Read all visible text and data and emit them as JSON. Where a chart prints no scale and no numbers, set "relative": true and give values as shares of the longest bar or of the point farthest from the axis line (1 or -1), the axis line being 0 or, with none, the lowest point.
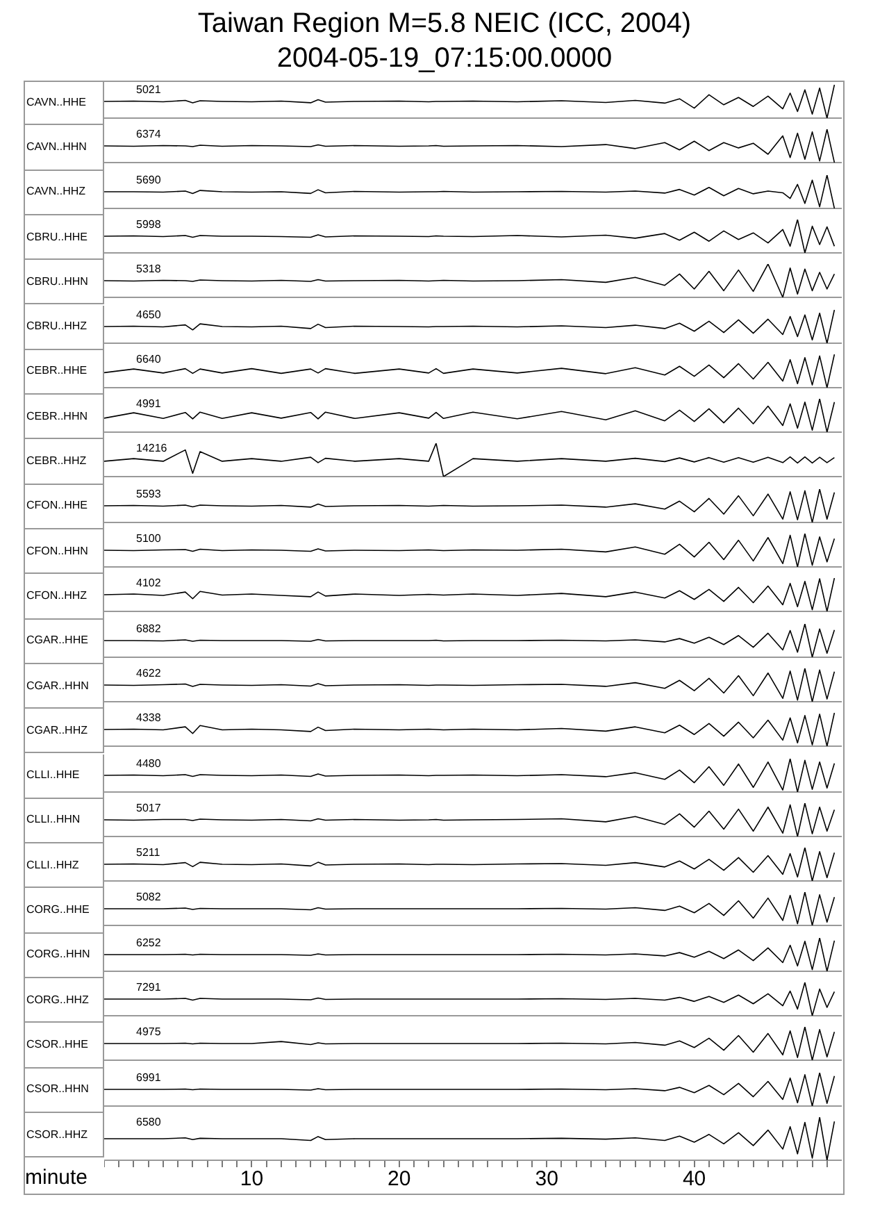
{
  "chart_data": [
    {
      "type": "line",
      "title": "Taiwan Region M=5.8 NEIC (ICC, 2004)",
      "subtitle": "2004-05-19_07:15:00.0000",
      "ylabel": "CAVN..HHE",
      "annotations": [
        "5021"
      ],
      "relative": true,
      "xlim": [
        0,
        50
      ],
      "tick_labels": false,
      "marker": "none",
      "x": [
        0,
        2,
        4,
        5.5,
        6,
        6.5,
        8,
        10,
        12,
        14,
        14.5,
        15,
        17,
        20,
        22,
        22.5,
        23,
        25,
        28,
        31,
        34,
        36,
        38,
        39,
        40,
        41,
        42,
        43,
        44,
        45,
        46,
        46.5,
        47,
        47.5,
        48,
        48.5,
        49,
        49.5
      ],
      "series": [
        {
          "color": "#000000",
          "values": [
            0.5,
            0.51,
            0.49,
            0.53,
            0.46,
            0.52,
            0.5,
            0.49,
            0.51,
            0.46,
            0.55,
            0.48,
            0.5,
            0.51,
            0.49,
            0.5,
            0.5,
            0.51,
            0.49,
            0.52,
            0.47,
            0.53,
            0.45,
            0.58,
            0.3,
            0.7,
            0.4,
            0.62,
            0.35,
            0.66,
            0.28,
            0.75,
            0.2,
            0.85,
            0.12,
            0.9,
            0,
            1
          ]
        }
      ]
    },
    {
      "type": "line",
      "ylabel": "CAVN..HHN",
      "annotations": [
        "6374"
      ],
      "relative": true,
      "xlim": [
        0,
        50
      ],
      "tick_labels": false,
      "marker": "none",
      "x": [
        0,
        2,
        4,
        5.5,
        6,
        6.5,
        8,
        10,
        12,
        14,
        14.5,
        15,
        17,
        20,
        22,
        22.5,
        23,
        25,
        28,
        31,
        34,
        36,
        38,
        39,
        40,
        41,
        42,
        43,
        44,
        45,
        46,
        46.5,
        47,
        47.5,
        48,
        48.5,
        49,
        49.5
      ],
      "series": [
        {
          "color": "#000000",
          "values": [
            0.5,
            0.49,
            0.51,
            0.5,
            0.48,
            0.52,
            0.49,
            0.51,
            0.5,
            0.48,
            0.53,
            0.49,
            0.51,
            0.49,
            0.5,
            0.51,
            0.49,
            0.5,
            0.51,
            0.48,
            0.54,
            0.42,
            0.6,
            0.38,
            0.64,
            0.36,
            0.6,
            0.44,
            0.58,
            0.25,
            0.8,
            0.15,
            0.88,
            0.1,
            0.92,
            0.05,
            1,
            0
          ]
        }
      ]
    },
    {
      "type": "line",
      "ylabel": "CAVN..HHZ",
      "annotations": [
        "5690"
      ],
      "relative": true,
      "xlim": [
        0,
        50
      ],
      "tick_labels": false,
      "marker": "none",
      "x": [
        0,
        2,
        4,
        5.5,
        6,
        6.5,
        8,
        10,
        12,
        14,
        14.5,
        15,
        17,
        20,
        22,
        22.5,
        23,
        25,
        28,
        31,
        34,
        36,
        38,
        39,
        40,
        41,
        42,
        43,
        44,
        45,
        46,
        46.5,
        47,
        47.5,
        48,
        48.5,
        49,
        49.5
      ],
      "series": [
        {
          "color": "#000000",
          "values": [
            0.5,
            0.5,
            0.49,
            0.52,
            0.45,
            0.54,
            0.5,
            0.49,
            0.5,
            0.45,
            0.56,
            0.47,
            0.51,
            0.49,
            0.5,
            0.5,
            0.51,
            0.49,
            0.5,
            0.51,
            0.49,
            0.52,
            0.46,
            0.57,
            0.4,
            0.63,
            0.38,
            0.6,
            0.44,
            0.52,
            0.47,
            0.3,
            0.72,
            0.15,
            0.85,
            0.05,
            1,
            0
          ]
        }
      ]
    },
    {
      "type": "line",
      "ylabel": "CBRU..HHE",
      "annotations": [
        "5998"
      ],
      "relative": true,
      "xlim": [
        0,
        50
      ],
      "tick_labels": false,
      "marker": "none",
      "x": [
        0,
        2,
        4,
        5.5,
        6,
        6.5,
        8,
        10,
        12,
        14,
        14.5,
        15,
        17,
        20,
        22,
        22.5,
        23,
        25,
        28,
        31,
        34,
        36,
        38,
        39,
        40,
        41,
        42,
        43,
        44,
        45,
        46,
        46.5,
        47,
        47.5,
        48,
        48.5,
        49,
        49.5
      ],
      "series": [
        {
          "color": "#000000",
          "values": [
            0.5,
            0.51,
            0.49,
            0.52,
            0.47,
            0.52,
            0.5,
            0.5,
            0.49,
            0.47,
            0.54,
            0.48,
            0.51,
            0.5,
            0.49,
            0.51,
            0.5,
            0.49,
            0.52,
            0.48,
            0.53,
            0.44,
            0.58,
            0.38,
            0.62,
            0.35,
            0.66,
            0.4,
            0.6,
            0.3,
            0.7,
            0.2,
            1,
            0,
            0.8,
            0.25,
            0.78,
            0.2
          ]
        }
      ]
    },
    {
      "type": "line",
      "ylabel": "CBRU..HHN",
      "annotations": [
        "5318"
      ],
      "relative": true,
      "xlim": [
        0,
        50
      ],
      "tick_labels": false,
      "marker": "none",
      "x": [
        0,
        2,
        4,
        5.5,
        6,
        6.5,
        8,
        10,
        12,
        14,
        14.5,
        15,
        17,
        20,
        22,
        22.5,
        23,
        25,
        28,
        31,
        34,
        36,
        38,
        39,
        40,
        41,
        42,
        43,
        44,
        45,
        46,
        46.5,
        47,
        47.5,
        48,
        48.5,
        49,
        49.5
      ],
      "series": [
        {
          "color": "#000000",
          "values": [
            0.5,
            0.49,
            0.51,
            0.5,
            0.48,
            0.52,
            0.5,
            0.49,
            0.51,
            0.48,
            0.53,
            0.49,
            0.5,
            0.51,
            0.49,
            0.5,
            0.51,
            0.49,
            0.5,
            0.53,
            0.45,
            0.6,
            0.36,
            0.7,
            0.25,
            0.78,
            0.2,
            0.82,
            0.18,
            1,
            0,
            0.88,
            0.1,
            0.85,
            0.2,
            0.75,
            0.25,
            0.7
          ]
        }
      ]
    },
    {
      "type": "line",
      "ylabel": "CBRU..HHZ",
      "annotations": [
        "4650"
      ],
      "relative": true,
      "xlim": [
        0,
        50
      ],
      "tick_labels": false,
      "marker": "none",
      "x": [
        0,
        2,
        4,
        5.5,
        6,
        6.5,
        8,
        10,
        12,
        14,
        14.5,
        15,
        17,
        20,
        22,
        22.5,
        23,
        25,
        28,
        31,
        34,
        36,
        38,
        39,
        40,
        41,
        42,
        43,
        44,
        45,
        46,
        46.5,
        47,
        47.5,
        48,
        48.5,
        49,
        49.5
      ],
      "series": [
        {
          "color": "#000000",
          "values": [
            0.5,
            0.51,
            0.49,
            0.55,
            0.4,
            0.58,
            0.5,
            0.49,
            0.51,
            0.44,
            0.57,
            0.47,
            0.51,
            0.5,
            0.49,
            0.5,
            0.5,
            0.51,
            0.49,
            0.52,
            0.47,
            0.54,
            0.44,
            0.6,
            0.36,
            0.66,
            0.32,
            0.7,
            0.3,
            0.72,
            0.26,
            0.8,
            0.2,
            0.85,
            0.1,
            0.9,
            0,
            1
          ]
        }
      ]
    },
    {
      "type": "line",
      "ylabel": "CEBR..HHE",
      "annotations": [
        "6640"
      ],
      "relative": true,
      "xlim": [
        0,
        50
      ],
      "tick_labels": false,
      "marker": "none",
      "x": [
        0,
        2,
        4,
        5.5,
        6,
        6.5,
        8,
        10,
        12,
        14,
        14.5,
        15,
        17,
        20,
        22,
        22.5,
        23,
        25,
        28,
        31,
        34,
        36,
        38,
        39,
        40,
        41,
        42,
        43,
        44,
        45,
        46,
        46.5,
        47,
        47.5,
        48,
        48.5,
        49,
        49.5
      ],
      "series": [
        {
          "color": "#000000",
          "values": [
            0.45,
            0.56,
            0.44,
            0.57,
            0.43,
            0.56,
            0.44,
            0.57,
            0.43,
            0.56,
            0.44,
            0.57,
            0.43,
            0.56,
            0.44,
            0.57,
            0.43,
            0.56,
            0.44,
            0.58,
            0.42,
            0.6,
            0.38,
            0.64,
            0.34,
            0.68,
            0.3,
            0.72,
            0.26,
            0.76,
            0.2,
            0.84,
            0.12,
            0.9,
            0.08,
            0.95,
            0,
            1
          ]
        }
      ]
    },
    {
      "type": "line",
      "ylabel": "CEBR..HHN",
      "annotations": [
        "4991"
      ],
      "relative": true,
      "xlim": [
        0,
        50
      ],
      "tick_labels": false,
      "marker": "none",
      "x": [
        0,
        2,
        4,
        5.5,
        6,
        6.5,
        8,
        10,
        12,
        14,
        14.5,
        15,
        17,
        20,
        22,
        22.5,
        23,
        25,
        28,
        31,
        34,
        36,
        38,
        39,
        40,
        41,
        42,
        43,
        44,
        45,
        46,
        46.5,
        47,
        47.5,
        48,
        48.5,
        49,
        49.5
      ],
      "series": [
        {
          "color": "#000000",
          "values": [
            0.42,
            0.58,
            0.41,
            0.59,
            0.4,
            0.6,
            0.41,
            0.58,
            0.42,
            0.59,
            0.4,
            0.6,
            0.41,
            0.58,
            0.42,
            0.59,
            0.41,
            0.6,
            0.4,
            0.62,
            0.37,
            0.64,
            0.34,
            0.66,
            0.32,
            0.7,
            0.28,
            0.72,
            0.25,
            0.78,
            0.2,
            0.85,
            0.12,
            0.9,
            0.06,
            1,
            0,
            0.9
          ]
        }
      ]
    },
    {
      "type": "line",
      "ylabel": "CEBR..HHZ",
      "annotations": [
        "14216"
      ],
      "relative": true,
      "xlim": [
        0,
        50
      ],
      "tick_labels": false,
      "marker": "none",
      "x": [
        0,
        2,
        4,
        5.5,
        6,
        6.5,
        8,
        10,
        12,
        14,
        14.5,
        15,
        17,
        20,
        22,
        22.5,
        23,
        25,
        28,
        31,
        34,
        36,
        38,
        39,
        40,
        41,
        42,
        43,
        44,
        45,
        46,
        46.5,
        47,
        47.5,
        48,
        48.5,
        49,
        49.5
      ],
      "series": [
        {
          "color": "#000000",
          "values": [
            0.46,
            0.54,
            0.46,
            0.8,
            0.1,
            0.75,
            0.46,
            0.54,
            0.46,
            0.58,
            0.42,
            0.55,
            0.46,
            0.54,
            0.46,
            1,
            0,
            0.54,
            0.46,
            0.54,
            0.46,
            0.55,
            0.45,
            0.56,
            0.44,
            0.57,
            0.43,
            0.57,
            0.43,
            0.58,
            0.42,
            0.59,
            0.41,
            0.59,
            0.41,
            0.58,
            0.42,
            0.57
          ]
        }
      ]
    },
    {
      "type": "line",
      "ylabel": "CFON..HHE",
      "annotations": [
        "5593"
      ],
      "relative": true,
      "xlim": [
        0,
        50
      ],
      "tick_labels": false,
      "marker": "none",
      "x": [
        0,
        2,
        4,
        5.5,
        6,
        6.5,
        8,
        10,
        12,
        14,
        14.5,
        15,
        17,
        20,
        22,
        22.5,
        23,
        25,
        28,
        31,
        34,
        36,
        38,
        39,
        40,
        41,
        42,
        43,
        44,
        45,
        46,
        46.5,
        47,
        47.5,
        48,
        48.5,
        49,
        49.5
      ],
      "series": [
        {
          "color": "#000000",
          "values": [
            0.5,
            0.51,
            0.49,
            0.52,
            0.47,
            0.52,
            0.5,
            0.49,
            0.51,
            0.46,
            0.55,
            0.48,
            0.5,
            0.51,
            0.49,
            0.5,
            0.51,
            0.49,
            0.5,
            0.52,
            0.46,
            0.56,
            0.4,
            0.64,
            0.32,
            0.72,
            0.25,
            0.8,
            0.2,
            0.85,
            0.1,
            0.92,
            0.08,
            0.95,
            0,
            1,
            0.1,
            0.9
          ]
        }
      ]
    },
    {
      "type": "line",
      "ylabel": "CFON..HHN",
      "annotations": [
        "5100"
      ],
      "relative": true,
      "xlim": [
        0,
        50
      ],
      "tick_labels": false,
      "marker": "none",
      "x": [
        0,
        2,
        4,
        5.5,
        6,
        6.5,
        8,
        10,
        12,
        14,
        14.5,
        15,
        17,
        20,
        22,
        22.5,
        23,
        25,
        28,
        31,
        34,
        36,
        38,
        39,
        40,
        41,
        42,
        43,
        44,
        45,
        46,
        46.5,
        47,
        47.5,
        48,
        48.5,
        49,
        49.5
      ],
      "series": [
        {
          "color": "#000000",
          "values": [
            0.5,
            0.49,
            0.51,
            0.52,
            0.47,
            0.53,
            0.49,
            0.51,
            0.5,
            0.47,
            0.54,
            0.48,
            0.5,
            0.49,
            0.51,
            0.5,
            0.49,
            0.51,
            0.5,
            0.53,
            0.45,
            0.6,
            0.38,
            0.68,
            0.3,
            0.74,
            0.22,
            0.8,
            0.18,
            0.88,
            0.1,
            0.95,
            0,
            1,
            0.05,
            0.9,
            0.15,
            0.85
          ]
        }
      ]
    },
    {
      "type": "line",
      "ylabel": "CFON..HHZ",
      "annotations": [
        "4102"
      ],
      "relative": true,
      "xlim": [
        0,
        50
      ],
      "tick_labels": false,
      "marker": "none",
      "x": [
        0,
        2,
        4,
        5.5,
        6,
        6.5,
        8,
        10,
        12,
        14,
        14.5,
        15,
        17,
        20,
        22,
        22.5,
        23,
        25,
        28,
        31,
        34,
        36,
        38,
        39,
        40,
        41,
        42,
        43,
        44,
        45,
        46,
        46.5,
        47,
        47.5,
        48,
        48.5,
        49,
        49.5
      ],
      "series": [
        {
          "color": "#000000",
          "values": [
            0.5,
            0.52,
            0.48,
            0.58,
            0.38,
            0.6,
            0.49,
            0.52,
            0.48,
            0.44,
            0.58,
            0.46,
            0.52,
            0.48,
            0.51,
            0.5,
            0.49,
            0.52,
            0.48,
            0.54,
            0.44,
            0.58,
            0.4,
            0.62,
            0.36,
            0.66,
            0.3,
            0.72,
            0.26,
            0.76,
            0.2,
            0.84,
            0.14,
            0.9,
            0.05,
            0.98,
            0,
            1
          ]
        }
      ]
    },
    {
      "type": "line",
      "ylabel": "CGAR..HHE",
      "annotations": [
        "6882"
      ],
      "relative": true,
      "xlim": [
        0,
        50
      ],
      "tick_labels": false,
      "marker": "none",
      "x": [
        0,
        2,
        4,
        5.5,
        6,
        6.5,
        8,
        10,
        12,
        14,
        14.5,
        15,
        17,
        20,
        22,
        22.5,
        23,
        25,
        28,
        31,
        34,
        36,
        38,
        39,
        40,
        41,
        42,
        43,
        44,
        45,
        46,
        46.5,
        47,
        47.5,
        48,
        48.5,
        49,
        49.5
      ],
      "series": [
        {
          "color": "#000000",
          "values": [
            0.5,
            0.5,
            0.49,
            0.52,
            0.48,
            0.51,
            0.5,
            0.5,
            0.5,
            0.48,
            0.53,
            0.49,
            0.5,
            0.5,
            0.5,
            0.51,
            0.49,
            0.5,
            0.5,
            0.51,
            0.49,
            0.52,
            0.46,
            0.56,
            0.42,
            0.6,
            0.38,
            0.65,
            0.3,
            0.72,
            0.22,
            0.8,
            0.15,
            1,
            0,
            0.85,
            0.12,
            0.82
          ]
        }
      ]
    },
    {
      "type": "line",
      "ylabel": "CGAR..HHN",
      "annotations": [
        "4622"
      ],
      "relative": true,
      "xlim": [
        0,
        50
      ],
      "tick_labels": false,
      "marker": "none",
      "x": [
        0,
        2,
        4,
        5.5,
        6,
        6.5,
        8,
        10,
        12,
        14,
        14.5,
        15,
        17,
        20,
        22,
        22.5,
        23,
        25,
        28,
        31,
        34,
        36,
        38,
        39,
        40,
        41,
        42,
        43,
        44,
        45,
        46,
        46.5,
        47,
        47.5,
        48,
        48.5,
        49,
        49.5
      ],
      "series": [
        {
          "color": "#000000",
          "values": [
            0.5,
            0.49,
            0.51,
            0.53,
            0.46,
            0.52,
            0.5,
            0.49,
            0.51,
            0.47,
            0.54,
            0.48,
            0.5,
            0.51,
            0.49,
            0.5,
            0.5,
            0.49,
            0.51,
            0.52,
            0.46,
            0.57,
            0.4,
            0.64,
            0.33,
            0.7,
            0.26,
            0.78,
            0.18,
            0.86,
            0.1,
            0.92,
            0.05,
            1,
            0,
            0.95,
            0.08,
            0.9
          ]
        }
      ]
    },
    {
      "type": "line",
      "ylabel": "CGAR..HHZ",
      "annotations": [
        "4338"
      ],
      "relative": true,
      "xlim": [
        0,
        50
      ],
      "tick_labels": false,
      "marker": "none",
      "x": [
        0,
        2,
        4,
        5.5,
        6,
        6.5,
        8,
        10,
        12,
        14,
        14.5,
        15,
        17,
        20,
        22,
        22.5,
        23,
        25,
        28,
        31,
        34,
        36,
        38,
        39,
        40,
        41,
        42,
        43,
        44,
        45,
        46,
        46.5,
        47,
        47.5,
        48,
        48.5,
        49,
        49.5
      ],
      "series": [
        {
          "color": "#000000",
          "values": [
            0.5,
            0.51,
            0.49,
            0.58,
            0.38,
            0.62,
            0.49,
            0.51,
            0.49,
            0.44,
            0.57,
            0.47,
            0.51,
            0.49,
            0.51,
            0.5,
            0.49,
            0.51,
            0.49,
            0.53,
            0.45,
            0.58,
            0.4,
            0.63,
            0.35,
            0.68,
            0.3,
            0.72,
            0.25,
            0.78,
            0.18,
            0.85,
            0.1,
            0.92,
            0.04,
            0.96,
            0,
            1
          ]
        }
      ]
    },
    {
      "type": "line",
      "ylabel": "CLLI..HHE",
      "annotations": [
        "4480"
      ],
      "relative": true,
      "xlim": [
        0,
        50
      ],
      "tick_labels": false,
      "marker": "none",
      "x": [
        0,
        2,
        4,
        5.5,
        6,
        6.5,
        8,
        10,
        12,
        14,
        14.5,
        15,
        17,
        20,
        22,
        22.5,
        23,
        25,
        28,
        31,
        34,
        36,
        38,
        39,
        40,
        41,
        42,
        43,
        44,
        45,
        46,
        46.5,
        47,
        47.5,
        48,
        48.5,
        49,
        49.5
      ],
      "series": [
        {
          "color": "#000000",
          "values": [
            0.5,
            0.51,
            0.49,
            0.52,
            0.47,
            0.52,
            0.5,
            0.49,
            0.51,
            0.47,
            0.54,
            0.48,
            0.5,
            0.51,
            0.49,
            0.5,
            0.5,
            0.51,
            0.49,
            0.52,
            0.46,
            0.58,
            0.38,
            0.66,
            0.28,
            0.76,
            0.2,
            0.84,
            0.14,
            0.9,
            0.06,
            1,
            0,
            0.95,
            0.08,
            0.9,
            0.12,
            0.86
          ]
        }
      ]
    },
    {
      "type": "line",
      "ylabel": "CLLI..HHN",
      "annotations": [
        "5017"
      ],
      "relative": true,
      "xlim": [
        0,
        50
      ],
      "tick_labels": false,
      "marker": "none",
      "x": [
        0,
        2,
        4,
        5.5,
        6,
        6.5,
        8,
        10,
        12,
        14,
        14.5,
        15,
        17,
        20,
        22,
        22.5,
        23,
        25,
        28,
        31,
        34,
        36,
        38,
        39,
        40,
        41,
        42,
        43,
        44,
        45,
        46,
        46.5,
        47,
        47.5,
        48,
        48.5,
        49,
        49.5
      ],
      "series": [
        {
          "color": "#000000",
          "values": [
            0.5,
            0.49,
            0.51,
            0.51,
            0.48,
            0.52,
            0.5,
            0.49,
            0.51,
            0.47,
            0.53,
            0.49,
            0.51,
            0.49,
            0.5,
            0.51,
            0.49,
            0.5,
            0.51,
            0.53,
            0.44,
            0.6,
            0.36,
            0.68,
            0.28,
            0.76,
            0.22,
            0.82,
            0.16,
            0.88,
            0.1,
            0.95,
            0,
            1,
            0.08,
            0.88,
            0.16,
            0.8
          ]
        }
      ]
    },
    {
      "type": "line",
      "ylabel": "CLLI..HHZ",
      "annotations": [
        "5211"
      ],
      "relative": true,
      "xlim": [
        0,
        50
      ],
      "tick_labels": false,
      "marker": "none",
      "x": [
        0,
        2,
        4,
        5.5,
        6,
        6.5,
        8,
        10,
        12,
        14,
        14.5,
        15,
        17,
        20,
        22,
        22.5,
        23,
        25,
        28,
        31,
        34,
        36,
        38,
        39,
        40,
        41,
        42,
        43,
        44,
        45,
        46,
        46.5,
        47,
        47.5,
        48,
        48.5,
        49,
        49.5
      ],
      "series": [
        {
          "color": "#000000",
          "values": [
            0.5,
            0.51,
            0.49,
            0.55,
            0.43,
            0.56,
            0.5,
            0.49,
            0.51,
            0.45,
            0.56,
            0.48,
            0.5,
            0.51,
            0.49,
            0.5,
            0.5,
            0.49,
            0.51,
            0.52,
            0.47,
            0.55,
            0.42,
            0.6,
            0.36,
            0.65,
            0.32,
            0.7,
            0.26,
            0.76,
            0.2,
            0.82,
            0.12,
            1,
            0,
            0.88,
            0.1,
            0.85
          ]
        }
      ]
    },
    {
      "type": "line",
      "ylabel": "CORG..HHE",
      "annotations": [
        "5082"
      ],
      "relative": true,
      "xlim": [
        0,
        50
      ],
      "tick_labels": false,
      "marker": "none",
      "x": [
        0,
        2,
        4,
        5.5,
        6,
        6.5,
        8,
        10,
        12,
        14,
        14.5,
        15,
        17,
        20,
        22,
        22.5,
        23,
        25,
        28,
        31,
        34,
        36,
        38,
        39,
        40,
        41,
        42,
        43,
        44,
        45,
        46,
        46.5,
        47,
        47.5,
        48,
        48.5,
        49,
        49.5
      ],
      "series": [
        {
          "color": "#000000",
          "values": [
            0.5,
            0.5,
            0.5,
            0.52,
            0.48,
            0.51,
            0.5,
            0.5,
            0.5,
            0.47,
            0.53,
            0.49,
            0.5,
            0.5,
            0.5,
            0.5,
            0.5,
            0.5,
            0.5,
            0.51,
            0.49,
            0.53,
            0.45,
            0.58,
            0.38,
            0.66,
            0.3,
            0.74,
            0.22,
            0.82,
            0.15,
            0.9,
            0.05,
            1,
            0,
            0.92,
            0.1,
            0.85
          ]
        }
      ]
    },
    {
      "type": "line",
      "ylabel": "CORG..HHN",
      "annotations": [
        "6252"
      ],
      "relative": true,
      "xlim": [
        0,
        50
      ],
      "tick_labels": false,
      "marker": "none",
      "x": [
        0,
        2,
        4,
        5.5,
        6,
        6.5,
        8,
        10,
        12,
        14,
        14.5,
        15,
        17,
        20,
        22,
        22.5,
        23,
        25,
        28,
        31,
        34,
        36,
        38,
        39,
        40,
        41,
        42,
        43,
        44,
        45,
        46,
        46.5,
        47,
        47.5,
        48,
        48.5,
        49,
        49.5
      ],
      "series": [
        {
          "color": "#000000",
          "values": [
            0.5,
            0.5,
            0.5,
            0.51,
            0.49,
            0.51,
            0.5,
            0.5,
            0.5,
            0.48,
            0.52,
            0.49,
            0.5,
            0.5,
            0.5,
            0.5,
            0.5,
            0.5,
            0.5,
            0.51,
            0.49,
            0.52,
            0.46,
            0.56,
            0.42,
            0.6,
            0.38,
            0.64,
            0.32,
            0.7,
            0.26,
            0.78,
            0.16,
            0.9,
            0.05,
            1,
            0,
            0.92
          ]
        }
      ]
    },
    {
      "type": "line",
      "ylabel": "CORG..HHZ",
      "annotations": [
        "7291"
      ],
      "relative": true,
      "xlim": [
        0,
        50
      ],
      "tick_labels": false,
      "marker": "none",
      "x": [
        0,
        2,
        4,
        5.5,
        6,
        6.5,
        8,
        10,
        12,
        14,
        14.5,
        15,
        17,
        20,
        22,
        22.5,
        23,
        25,
        28,
        31,
        34,
        36,
        38,
        39,
        40,
        41,
        42,
        43,
        44,
        45,
        46,
        46.5,
        47,
        47.5,
        48,
        48.5,
        49,
        49.5
      ],
      "series": [
        {
          "color": "#000000",
          "values": [
            0.5,
            0.5,
            0.5,
            0.52,
            0.47,
            0.52,
            0.5,
            0.5,
            0.5,
            0.48,
            0.53,
            0.49,
            0.5,
            0.5,
            0.5,
            0.5,
            0.5,
            0.5,
            0.5,
            0.51,
            0.49,
            0.52,
            0.47,
            0.55,
            0.43,
            0.58,
            0.4,
            0.62,
            0.36,
            0.66,
            0.3,
            0.74,
            0.2,
            1,
            0,
            0.8,
            0.25,
            0.72
          ]
        }
      ]
    },
    {
      "type": "line",
      "ylabel": "CSOR..HHE",
      "annotations": [
        "4975"
      ],
      "relative": true,
      "xlim": [
        0,
        50
      ],
      "tick_labels": false,
      "marker": "none",
      "x": [
        0,
        2,
        4,
        5.5,
        6,
        6.5,
        8,
        10,
        12,
        14,
        14.5,
        15,
        17,
        20,
        22,
        22.5,
        23,
        25,
        28,
        31,
        34,
        36,
        38,
        39,
        40,
        41,
        42,
        43,
        44,
        45,
        46,
        46.5,
        47,
        47.5,
        48,
        48.5,
        49,
        49.5
      ],
      "series": [
        {
          "color": "#000000",
          "values": [
            0.5,
            0.5,
            0.5,
            0.51,
            0.49,
            0.51,
            0.5,
            0.5,
            0.56,
            0.47,
            0.52,
            0.49,
            0.5,
            0.5,
            0.5,
            0.5,
            0.5,
            0.5,
            0.5,
            0.51,
            0.49,
            0.53,
            0.45,
            0.58,
            0.38,
            0.66,
            0.3,
            0.74,
            0.24,
            0.8,
            0.16,
            0.88,
            0.08,
            1,
            0,
            0.92,
            0.1,
            0.85
          ]
        }
      ]
    },
    {
      "type": "line",
      "ylabel": "CSOR..HHN",
      "annotations": [
        "6991"
      ],
      "relative": true,
      "xlim": [
        0,
        50
      ],
      "tick_labels": false,
      "marker": "none",
      "x": [
        0,
        2,
        4,
        5.5,
        6,
        6.5,
        8,
        10,
        12,
        14,
        14.5,
        15,
        17,
        20,
        22,
        22.5,
        23,
        25,
        28,
        31,
        34,
        36,
        38,
        39,
        40,
        41,
        42,
        43,
        44,
        45,
        46,
        46.5,
        47,
        47.5,
        48,
        48.5,
        49,
        49.5
      ],
      "series": [
        {
          "color": "#000000",
          "values": [
            0.5,
            0.5,
            0.5,
            0.51,
            0.49,
            0.51,
            0.5,
            0.5,
            0.5,
            0.48,
            0.52,
            0.49,
            0.5,
            0.5,
            0.5,
            0.5,
            0.5,
            0.5,
            0.5,
            0.51,
            0.49,
            0.52,
            0.46,
            0.56,
            0.4,
            0.62,
            0.34,
            0.68,
            0.28,
            0.74,
            0.2,
            0.84,
            0.1,
            0.94,
            0,
            1,
            0.08,
            0.9
          ]
        }
      ]
    },
    {
      "type": "line",
      "ylabel": "CSOR..HHZ",
      "xlabel": "minute",
      "annotations": [
        "6580"
      ],
      "relative": true,
      "xlim": [
        0,
        50
      ],
      "tick_labels": "x",
      "marker": "none",
      "xticks": [
        {
          "value": 0,
          "label": null
        },
        {
          "value": 1,
          "label": null
        },
        {
          "value": 2,
          "label": null
        },
        {
          "value": 3,
          "label": null
        },
        {
          "value": 4,
          "label": null
        },
        {
          "value": 5,
          "label": null
        },
        {
          "value": 6,
          "label": null
        },
        {
          "value": 7,
          "label": null
        },
        {
          "value": 8,
          "label": null
        },
        {
          "value": 9,
          "label": null
        },
        10,
        {
          "value": 11,
          "label": null
        },
        {
          "value": 12,
          "label": null
        },
        {
          "value": 13,
          "label": null
        },
        {
          "value": 14,
          "label": null
        },
        {
          "value": 15,
          "label": null
        },
        {
          "value": 16,
          "label": null
        },
        {
          "value": 17,
          "label": null
        },
        {
          "value": 18,
          "label": null
        },
        {
          "value": 19,
          "label": null
        },
        20,
        {
          "value": 21,
          "label": null
        },
        {
          "value": 22,
          "label": null
        },
        {
          "value": 23,
          "label": null
        },
        {
          "value": 24,
          "label": null
        },
        {
          "value": 25,
          "label": null
        },
        {
          "value": 26,
          "label": null
        },
        {
          "value": 27,
          "label": null
        },
        {
          "value": 28,
          "label": null
        },
        {
          "value": 29,
          "label": null
        },
        30,
        {
          "value": 31,
          "label": null
        },
        {
          "value": 32,
          "label": null
        },
        {
          "value": 33,
          "label": null
        },
        {
          "value": 34,
          "label": null
        },
        {
          "value": 35,
          "label": null
        },
        {
          "value": 36,
          "label": null
        },
        {
          "value": 37,
          "label": null
        },
        {
          "value": 38,
          "label": null
        },
        {
          "value": 39,
          "label": null
        },
        40,
        {
          "value": 41,
          "label": null
        },
        {
          "value": 42,
          "label": null
        },
        {
          "value": 43,
          "label": null
        },
        {
          "value": 44,
          "label": null
        },
        {
          "value": 45,
          "label": null
        },
        {
          "value": 46,
          "label": null
        },
        {
          "value": 47,
          "label": null
        },
        {
          "value": 48,
          "label": null
        },
        {
          "value": 49,
          "label": null
        }
      ],
      "x": [
        0,
        2,
        4,
        5.5,
        6,
        6.5,
        8,
        10,
        12,
        14,
        14.5,
        15,
        17,
        20,
        22,
        22.5,
        23,
        25,
        28,
        31,
        34,
        36,
        38,
        39,
        40,
        41,
        42,
        43,
        44,
        45,
        46,
        46.5,
        47,
        47.5,
        48,
        48.5,
        49,
        49.5
      ],
      "series": [
        {
          "color": "#000000",
          "values": [
            0.5,
            0.5,
            0.5,
            0.52,
            0.48,
            0.51,
            0.5,
            0.5,
            0.5,
            0.46,
            0.55,
            0.48,
            0.5,
            0.5,
            0.5,
            0.5,
            0.5,
            0.5,
            0.5,
            0.51,
            0.49,
            0.52,
            0.46,
            0.56,
            0.42,
            0.6,
            0.38,
            0.64,
            0.34,
            0.7,
            0.26,
            0.78,
            0.15,
            0.88,
            0.05,
            1,
            0,
            0.9
          ]
        }
      ]
    }
  ]
}
